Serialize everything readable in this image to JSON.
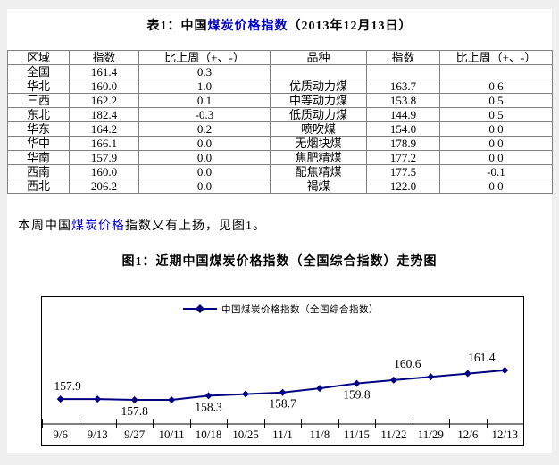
{
  "doc_title": {
    "prefix": "表1：中国",
    "link": "煤炭价格指数",
    "suffix": "（2013年12月13日）"
  },
  "table": {
    "headers": [
      "区域",
      "指数",
      "比上周（+、-）",
      "品种",
      "指数",
      "比上周（+、-）"
    ],
    "rows": [
      [
        "全国",
        "161.4",
        "0.3",
        "",
        "",
        ""
      ],
      [
        "华北",
        "160.0",
        "1.0",
        "优质动力煤",
        "163.7",
        "0.6"
      ],
      [
        "三西",
        "162.2",
        "0.1",
        "中等动力煤",
        "153.8",
        "0.5"
      ],
      [
        "东北",
        "182.4",
        "-0.3",
        "低质动力煤",
        "144.9",
        "0.5"
      ],
      [
        "华东",
        "164.2",
        "0.2",
        "喷吹煤",
        "154.0",
        "0.0"
      ],
      [
        "华中",
        "166.1",
        "0.0",
        "无烟块煤",
        "178.9",
        "0.0"
      ],
      [
        "华南",
        "157.9",
        "0.0",
        "焦肥精煤",
        "177.2",
        "0.0"
      ],
      [
        "西南",
        "160.0",
        "0.0",
        "配焦精煤",
        "177.5",
        "-0.1"
      ],
      [
        "西北",
        "206.2",
        "0.0",
        "褐煤",
        "122.0",
        "0.0"
      ]
    ]
  },
  "paragraph": {
    "prefix": "本周中国",
    "link": "煤炭价格",
    "suffix": "指数又有上扬，见图1。"
  },
  "figure_title": "图1：近期中国煤炭价格指数（全国综合指数）走势图",
  "chart_data": {
    "type": "line",
    "title": "图1：近期中国煤炭价格指数（全国综合指数）走势图",
    "legend": "中国煤炭价格指数（全国综合指数）",
    "legend_position": "top-center",
    "grid": false,
    "x": [
      "9/6",
      "9/13",
      "9/27",
      "10/11",
      "10/18",
      "10/25",
      "11/1",
      "11/8",
      "11/15",
      "11/22",
      "11/29",
      "12/6",
      "12/13"
    ],
    "values": [
      157.9,
      157.9,
      157.8,
      157.8,
      158.3,
      158.5,
      158.7,
      159.2,
      159.8,
      160.2,
      160.6,
      161.0,
      161.4
    ],
    "point_labels": [
      {
        "index": 0,
        "text": "157.9",
        "side": "above"
      },
      {
        "index": 2,
        "text": "157.8",
        "side": "below"
      },
      {
        "index": 4,
        "text": "158.3",
        "side": "below"
      },
      {
        "index": 6,
        "text": "158.7",
        "side": "below"
      },
      {
        "index": 8,
        "text": "159.8",
        "side": "below"
      },
      {
        "index": 10,
        "text": "160.6",
        "side": "above"
      },
      {
        "index": 12,
        "text": "161.4",
        "side": "above"
      }
    ],
    "ylim": [
      157.5,
      161.8
    ],
    "xlabel": "",
    "ylabel": ""
  },
  "colors": {
    "link_blue": "#0000CC",
    "line_navy": "#000080",
    "table_border": "#808080",
    "chart_border": "#000000",
    "page_edge": "#f0f0f0"
  }
}
